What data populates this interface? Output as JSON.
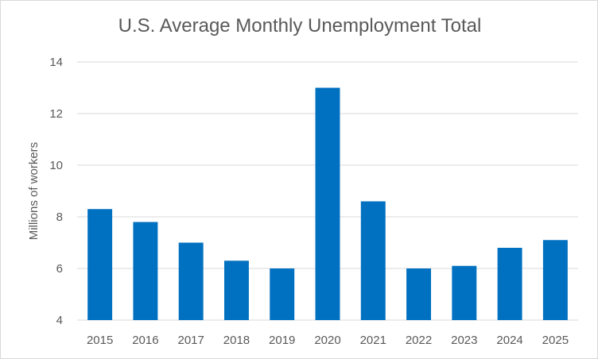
{
  "chart_data": {
    "type": "bar",
    "title": "U.S. Average Monthly Unemployment Total",
    "xlabel": "",
    "ylabel": "Millions of workers",
    "categories": [
      "2015",
      "2016",
      "2017",
      "2018",
      "2019",
      "2020",
      "2021",
      "2022",
      "2023",
      "2024",
      "2025"
    ],
    "values": [
      8.3,
      7.8,
      7.0,
      6.3,
      6.0,
      13.0,
      8.6,
      6.0,
      6.1,
      6.8,
      7.1
    ],
    "ylim": [
      4,
      14
    ],
    "yticks": [
      4,
      6,
      8,
      10,
      12,
      14
    ],
    "grid": true,
    "legend": "none",
    "bar_color": "#0070c0",
    "grid_color": "#d9d9d9",
    "text_color": "#595959"
  }
}
